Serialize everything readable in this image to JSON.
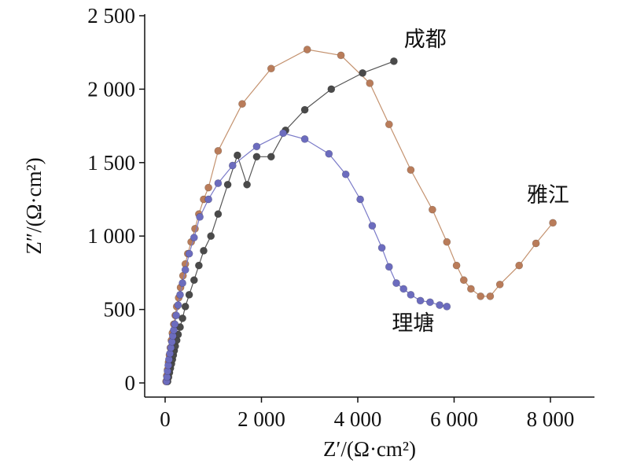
{
  "chart_data": {
    "type": "scatter",
    "title": "",
    "xlabel": "Z′/(Ω·cm²)",
    "ylabel": "Z″/(Ω·cm²)",
    "xlim": [
      -400,
      8900
    ],
    "ylim": [
      -100,
      2500
    ],
    "xticks": [
      0,
      2000,
      4000,
      6000,
      8000
    ],
    "xtick_labels": [
      "0",
      "2 000",
      "4 000",
      "6 000",
      "8 000"
    ],
    "yticks": [
      0,
      500,
      1000,
      1500,
      2000,
      2500
    ],
    "ytick_labels": [
      "0",
      "500",
      "1 000",
      "1 500",
      "2 000",
      "2 500"
    ],
    "grid": false,
    "legend": "none",
    "series": [
      {
        "name": "雅江",
        "color": "#b97c5a",
        "line_color": "#c4926f",
        "points": [
          [
            20,
            10
          ],
          [
            35,
            50
          ],
          [
            50,
            90
          ],
          [
            70,
            140
          ],
          [
            90,
            190
          ],
          [
            110,
            240
          ],
          [
            130,
            290
          ],
          [
            150,
            340
          ],
          [
            180,
            400
          ],
          [
            210,
            460
          ],
          [
            240,
            520
          ],
          [
            280,
            580
          ],
          [
            320,
            650
          ],
          [
            370,
            730
          ],
          [
            420,
            810
          ],
          [
            470,
            880
          ],
          [
            540,
            960
          ],
          [
            620,
            1050
          ],
          [
            700,
            1150
          ],
          [
            800,
            1250
          ],
          [
            900,
            1330
          ],
          [
            1100,
            1580
          ],
          [
            1600,
            1900
          ],
          [
            2200,
            2140
          ],
          [
            2950,
            2270
          ],
          [
            3650,
            2230
          ],
          [
            4250,
            2040
          ],
          [
            4650,
            1760
          ],
          [
            5100,
            1450
          ],
          [
            5550,
            1180
          ],
          [
            5850,
            960
          ],
          [
            6050,
            800
          ],
          [
            6200,
            700
          ],
          [
            6350,
            640
          ],
          [
            6550,
            590
          ],
          [
            6750,
            590
          ],
          [
            6950,
            670
          ],
          [
            7350,
            800
          ],
          [
            7700,
            950
          ],
          [
            8050,
            1090
          ]
        ]
      },
      {
        "name": "成都",
        "color": "#4a4a4a",
        "line_color": "#555555",
        "points": [
          [
            50,
            10
          ],
          [
            70,
            40
          ],
          [
            90,
            70
          ],
          [
            110,
            100
          ],
          [
            130,
            130
          ],
          [
            150,
            160
          ],
          [
            170,
            190
          ],
          [
            190,
            220
          ],
          [
            210,
            250
          ],
          [
            240,
            290
          ],
          [
            270,
            330
          ],
          [
            310,
            380
          ],
          [
            360,
            440
          ],
          [
            420,
            520
          ],
          [
            500,
            600
          ],
          [
            600,
            700
          ],
          [
            700,
            800
          ],
          [
            800,
            900
          ],
          [
            950,
            1000
          ],
          [
            1100,
            1150
          ],
          [
            1300,
            1350
          ],
          [
            1500,
            1550
          ],
          [
            1700,
            1350
          ],
          [
            1900,
            1540
          ],
          [
            2200,
            1540
          ],
          [
            2500,
            1720
          ],
          [
            2900,
            1860
          ],
          [
            3450,
            2000
          ],
          [
            4100,
            2110
          ],
          [
            4750,
            2190
          ]
        ]
      },
      {
        "name": "理塘",
        "color": "#6c6cbe",
        "line_color": "#7a7ac8",
        "points": [
          [
            30,
            10
          ],
          [
            40,
            40
          ],
          [
            50,
            80
          ],
          [
            65,
            120
          ],
          [
            80,
            160
          ],
          [
            100,
            200
          ],
          [
            120,
            240
          ],
          [
            140,
            280
          ],
          [
            160,
            320
          ],
          [
            180,
            360
          ],
          [
            200,
            400
          ],
          [
            230,
            460
          ],
          [
            270,
            530
          ],
          [
            310,
            600
          ],
          [
            360,
            680
          ],
          [
            420,
            770
          ],
          [
            500,
            880
          ],
          [
            600,
            990
          ],
          [
            720,
            1130
          ],
          [
            900,
            1250
          ],
          [
            1100,
            1360
          ],
          [
            1400,
            1480
          ],
          [
            1900,
            1610
          ],
          [
            2450,
            1700
          ],
          [
            2900,
            1660
          ],
          [
            3400,
            1560
          ],
          [
            3750,
            1420
          ],
          [
            4050,
            1250
          ],
          [
            4300,
            1070
          ],
          [
            4500,
            920
          ],
          [
            4650,
            790
          ],
          [
            4800,
            680
          ],
          [
            4950,
            640
          ],
          [
            5100,
            600
          ],
          [
            5300,
            560
          ],
          [
            5500,
            550
          ],
          [
            5700,
            530
          ],
          [
            5850,
            520
          ]
        ]
      }
    ],
    "annotations": [
      {
        "text": "成都",
        "x": 5400,
        "y": 2290
      },
      {
        "text": "雅江",
        "x": 7950,
        "y": 1230
      },
      {
        "text": "理塘",
        "x": 5150,
        "y": 360
      }
    ]
  }
}
